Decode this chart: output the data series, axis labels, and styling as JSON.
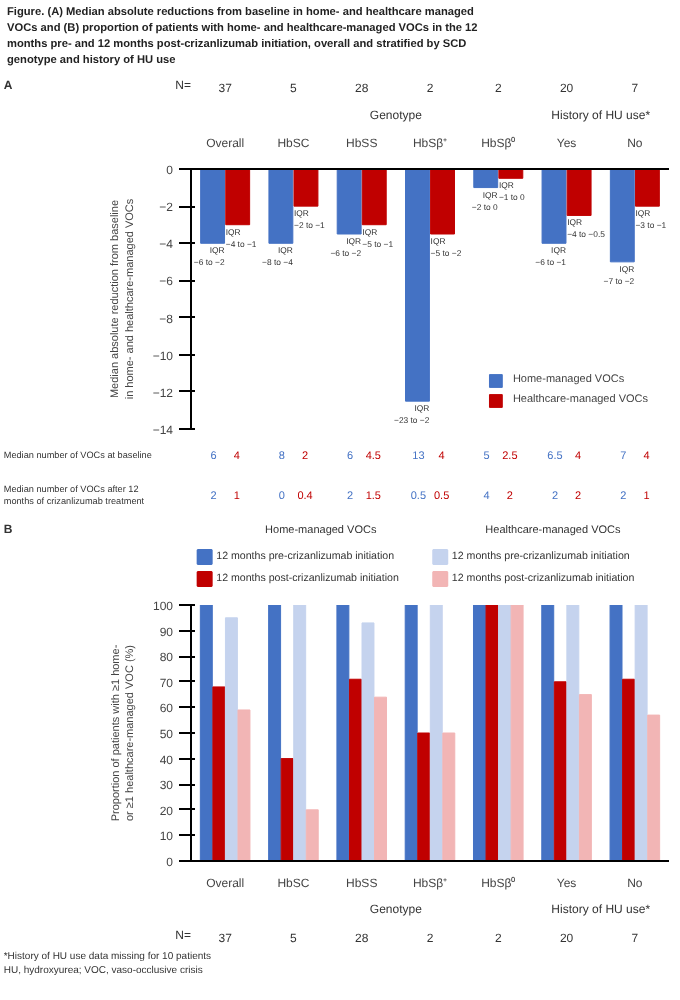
{
  "chart_data": [
    {
      "type": "bar",
      "title": "Figure. (A) Median absolute reductions from baseline in home- and healthcare managed VOCs and (B) proportion of patients with home- and healthcare-managed VOCs in the 12 months pre- and 12 months post-crizanlizumab initiation, overall and stratified by SCD genotype and history of HU use",
      "ylabel": "Median absolute reduction from baseline in home- and healthcare-managed VOCs",
      "categories": [
        "Overall",
        "HbSC",
        "HbSS",
        "HbSβ⁺",
        "HbSβ⁰",
        "Yes",
        "No"
      ],
      "series": [
        {
          "name": "Home-managed VOCs",
          "color": "#4472c4",
          "values": [
            -4,
            -4,
            -3.5,
            -12.5,
            -1,
            -4,
            -5
          ],
          "value_labels": [
            "IQR −6 to −2",
            "IQR −8 to −4",
            "IQR −6 to −2",
            "IQR −23 to −2",
            "IQR −2 to 0",
            "IQR −6 to −1",
            "IQR −7 to −2"
          ]
        },
        {
          "name": "Healthcare-managed VOCs",
          "color": "#c00000",
          "values": [
            -3,
            -2,
            -3,
            -3.5,
            -0.5,
            -2.5,
            -2
          ],
          "value_labels": [
            "IQR −4 to −1",
            "IQR −2 to −1",
            "IQR −5 to −1",
            "IQR −5 to −2",
            "IQR −1 to 0",
            "IQR −4 to −0.5",
            "IQR −3 to −1"
          ]
        }
      ],
      "ylim": [
        -14,
        0
      ],
      "yticks": [
        -14,
        -12,
        -10,
        -8,
        -6,
        -4,
        -2,
        0
      ],
      "legend": "bottom right",
      "annotations": [
        "A",
        "N=",
        "37",
        "5",
        "28",
        "2",
        "2",
        "20",
        "7",
        "Genotype",
        "History of HU use*",
        "Median number of VOCs at baseline",
        "6",
        "4",
        "8",
        "2",
        "6",
        "4.5",
        "13",
        "4",
        "5",
        "2.5",
        "6.5",
        "4",
        "7",
        "4",
        "Median number of VOCs after 12 months of crizanlizumab treatment",
        "2",
        "1",
        "0",
        "0.4",
        "2",
        "1.5",
        "0.5",
        "0.5",
        "4",
        "2",
        "2",
        "2",
        "2",
        "1"
      ]
    },
    {
      "type": "bar",
      "ylabel": "Proportion of patients with ≥1 home- or ≥1 healthcare-managed VOC (%)",
      "categories": [
        "Overall",
        "HbSC",
        "HbSS",
        "HbSβ⁺",
        "HbSβ⁰",
        "Yes",
        "No"
      ],
      "series": [
        {
          "name": "12 months pre-crizanlizumab initiation",
          "color": "#4472c4",
          "values": [
            100,
            100,
            100,
            100,
            100,
            100,
            100
          ]
        },
        {
          "name": "12 months post-crizanlizumab initiation",
          "color": "#c00000",
          "values": [
            68,
            40,
            71,
            50,
            100,
            70,
            71
          ]
        },
        {
          "name": "12 months pre-crizanlizumab initiation",
          "color": "#c5d3ee",
          "values": [
            95,
            100,
            93,
            100,
            100,
            100,
            100
          ]
        },
        {
          "name": "12 months post-crizanlizumab initiation",
          "color": "#f2b5b5",
          "values": [
            59,
            20,
            64,
            50,
            100,
            65,
            57
          ]
        }
      ],
      "ylim": [
        0,
        100
      ],
      "yticks": [
        0,
        10,
        20,
        30,
        40,
        50,
        60,
        70,
        80,
        90,
        100
      ],
      "legend": "top",
      "annotations": [
        "B",
        "N=",
        "37",
        "5",
        "28",
        "2",
        "2",
        "20",
        "7",
        "Genotype",
        "History of HU use*",
        "Home-managed VOCs",
        "Healthcare-managed VOCs",
        "*History of HU use data missing for 10 patients",
        "HU, hydroxyurea; VOC, vaso-occlusive crisis"
      ]
    }
  ]
}
